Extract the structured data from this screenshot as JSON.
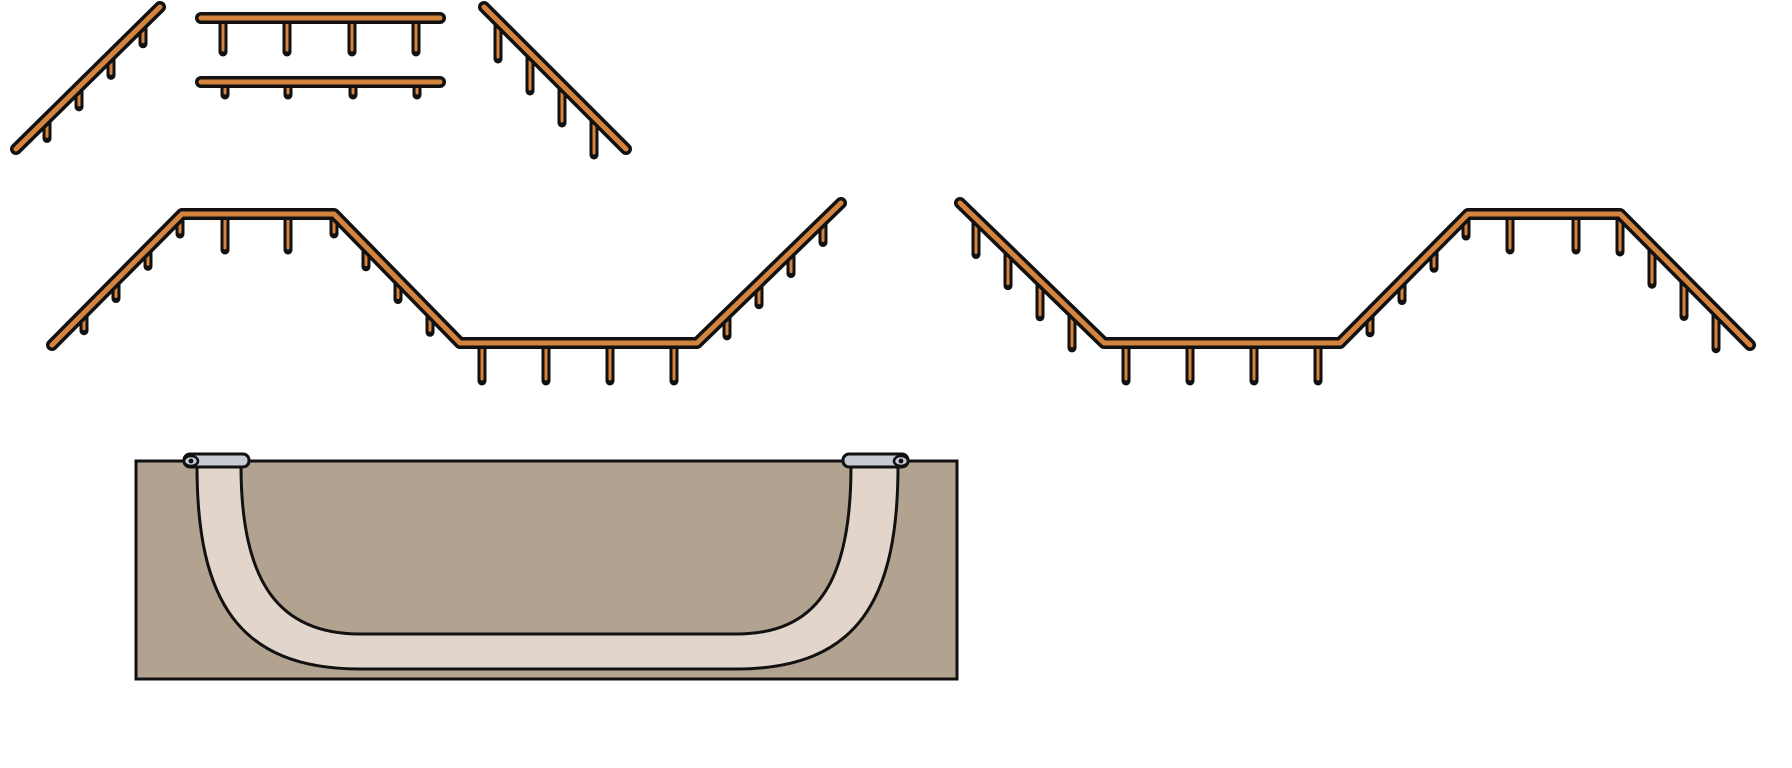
{
  "sheet": {
    "background": "#ffffff",
    "sprites": [
      {
        "id": "rail-slope-up",
        "icon": "grind-rail-slope-up-icon"
      },
      {
        "id": "rail-flat-top",
        "icon": "grind-rail-flat-icon"
      },
      {
        "id": "rail-flat-bottom",
        "icon": "grind-rail-flat-short-legs-icon"
      },
      {
        "id": "rail-slope-down",
        "icon": "grind-rail-slope-down-icon"
      },
      {
        "id": "rail-bump-left",
        "icon": "grind-rail-hill-valley-icon"
      },
      {
        "id": "rail-bump-right",
        "icon": "grind-rail-valley-hill-icon"
      },
      {
        "id": "halfpipe",
        "icon": "halfpipe-ramp-icon"
      }
    ]
  },
  "colors": {
    "rail_fill": "#d4843e",
    "outline": "#111111",
    "halfpipe_ground": "#b2a290",
    "halfpipe_surface": "#e2d5cb",
    "coping": "#c8cbd4"
  }
}
